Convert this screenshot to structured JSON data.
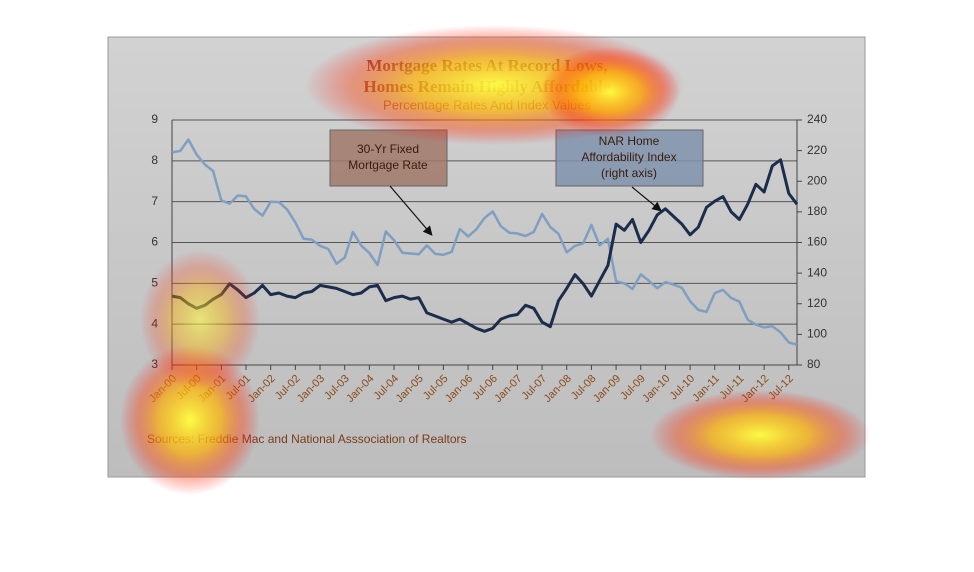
{
  "chart_data": {
    "type": "line",
    "title": [
      "Mortgage Rates At Record Lows,",
      "Homes Remain Highly Affordable"
    ],
    "subtitle": "Percentage Rates And Index Values",
    "source": "Sources:  Freddie Mac and National Asssociation of Realtors",
    "annotations": [
      {
        "lines": [
          "30-Yr Fixed",
          "Mortgage Rate"
        ],
        "color": "#a0786a"
      },
      {
        "lines": [
          "NAR Home",
          "Affordability Index",
          "(right axis)"
        ],
        "color": "#7f93ad"
      }
    ],
    "categories": [
      "Jan-00",
      null,
      null,
      "Jul-00",
      null,
      null,
      "Jan-01",
      null,
      null,
      "Jul-01",
      null,
      null,
      "Jan-02",
      null,
      null,
      "Jul-02",
      null,
      null,
      "Jan-03",
      null,
      null,
      "Jul-03",
      null,
      null,
      "Jan-04",
      null,
      null,
      "Jul-04",
      null,
      null,
      "Jan-05",
      null,
      null,
      "Jul-05",
      null,
      null,
      "Jan-06",
      null,
      null,
      "Jul-06",
      null,
      null,
      "Jan-07",
      null,
      null,
      "Jul-07",
      null,
      null,
      "Jan-08",
      null,
      null,
      "Jul-08",
      null,
      null,
      "Jan-09",
      null,
      null,
      "Jul-09",
      null,
      null,
      "Jan-10",
      null,
      null,
      "Jul-10",
      null,
      null,
      "Jan-11",
      null,
      null,
      "Jul-11",
      null,
      null,
      "Jan-12",
      null,
      null,
      "Jul-12",
      null
    ],
    "series": [
      {
        "name": "30-Yr Fixed Mortgage Rate",
        "color": "#7f9fc2",
        "values": [
          8.21,
          8.24,
          8.52,
          8.15,
          7.91,
          7.75,
          7.03,
          6.95,
          7.15,
          7.13,
          6.82,
          6.66,
          7.0,
          6.99,
          6.81,
          6.49,
          6.09,
          6.07,
          5.92,
          5.84,
          5.48,
          5.63,
          6.26,
          5.93,
          5.74,
          5.45,
          6.27,
          6.06,
          5.75,
          5.73,
          5.71,
          5.93,
          5.72,
          5.7,
          5.77,
          6.33,
          6.15,
          6.32,
          6.6,
          6.76,
          6.4,
          6.24,
          6.22,
          6.16,
          6.26,
          6.7,
          6.38,
          6.21,
          5.76,
          5.92,
          5.98,
          6.43,
          5.93,
          6.09,
          5.05,
          5.0,
          4.86,
          5.22,
          5.06,
          4.88,
          5.03,
          4.97,
          4.89,
          4.56,
          4.35,
          4.3,
          4.76,
          4.84,
          4.64,
          4.55,
          4.11,
          3.99,
          3.92,
          3.95,
          3.8,
          3.55,
          3.5
        ]
      },
      {
        "name": "NAR Home Affordability Index",
        "color": "#1c2d4c",
        "axis": "y2",
        "values": [
          125,
          124,
          120,
          117,
          119,
          123,
          126,
          133,
          129,
          124,
          127,
          132,
          126,
          127,
          125,
          124,
          127,
          128,
          132,
          131,
          130,
          128,
          126,
          127,
          131,
          132,
          122,
          124,
          125,
          123,
          124,
          114,
          112,
          110,
          108,
          110,
          107,
          104,
          102,
          104,
          110,
          112,
          113,
          119,
          117,
          108,
          105,
          122,
          130,
          139,
          133,
          125,
          135,
          145,
          172,
          168,
          175,
          160,
          168,
          178,
          182,
          177,
          172,
          165,
          170,
          183,
          187,
          190,
          180,
          175,
          185,
          198,
          193,
          210,
          214,
          192,
          185
        ]
      }
    ],
    "ylim": [
      3,
      9
    ],
    "yticks": [
      3,
      4,
      5,
      6,
      7,
      8,
      9
    ],
    "y2lim": [
      80,
      240
    ],
    "y2ticks": [
      80,
      100,
      120,
      140,
      160,
      180,
      200,
      220,
      240
    ],
    "grid": true
  }
}
